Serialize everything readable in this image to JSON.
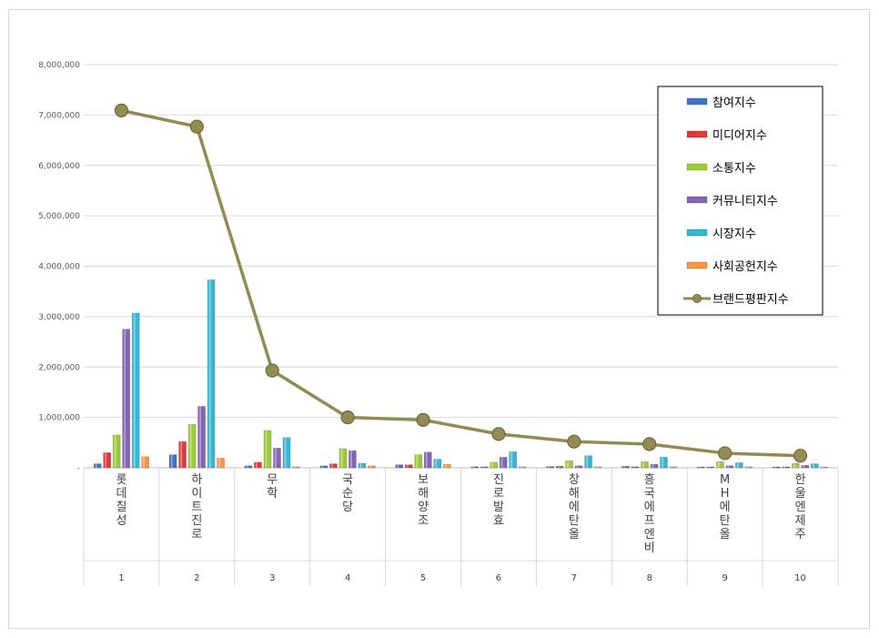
{
  "chart_data": {
    "type": "bar",
    "ylim": [
      0,
      8000000
    ],
    "y_ticks": [
      "-",
      "1,000,000",
      "2,000,000",
      "3,000,000",
      "4,000,000",
      "5,000,000",
      "6,000,000",
      "7,000,000",
      "8,000,000"
    ],
    "categories": [
      "롯데칠성",
      "하이트진로",
      "무학",
      "국순당",
      "보해양조",
      "진로발효",
      "창해에탄올",
      "흥국에프엔비",
      "MH에탄올",
      "한울엔제주"
    ],
    "ranks": [
      "1",
      "2",
      "3",
      "4",
      "5",
      "6",
      "7",
      "8",
      "9",
      "10"
    ],
    "grid": true,
    "legend_position": "top-right",
    "series": [
      {
        "name": "참여지수",
        "type": "bar",
        "color": "#4472c4",
        "values": [
          80000,
          260000,
          40000,
          40000,
          60000,
          20000,
          25000,
          30000,
          10000,
          10000
        ]
      },
      {
        "name": "미디어지수",
        "type": "bar",
        "color": "#e03a3a",
        "values": [
          300000,
          520000,
          110000,
          80000,
          60000,
          20000,
          30000,
          20000,
          15000,
          10000
        ]
      },
      {
        "name": "소통지수",
        "type": "bar",
        "color": "#9ccc3c",
        "values": [
          650000,
          860000,
          740000,
          380000,
          260000,
          110000,
          140000,
          120000,
          120000,
          90000
        ]
      },
      {
        "name": "커뮤니티지수",
        "type": "bar",
        "color": "#8464b4",
        "values": [
          2750000,
          1220000,
          390000,
          340000,
          310000,
          210000,
          40000,
          70000,
          40000,
          50000
        ]
      },
      {
        "name": "시장지수",
        "type": "bar",
        "color": "#36b8d4",
        "values": [
          3070000,
          3730000,
          600000,
          90000,
          170000,
          320000,
          240000,
          210000,
          100000,
          80000
        ]
      },
      {
        "name": "사회공헌지수",
        "type": "bar",
        "color": "#f79646",
        "values": [
          220000,
          190000,
          20000,
          40000,
          70000,
          20000,
          20000,
          20000,
          20000,
          10000
        ]
      },
      {
        "name": "브랜드평판지수",
        "type": "line",
        "color": "#948a54",
        "values": [
          7090000,
          6770000,
          1930000,
          1000000,
          950000,
          670000,
          520000,
          470000,
          290000,
          240000
        ]
      }
    ]
  }
}
